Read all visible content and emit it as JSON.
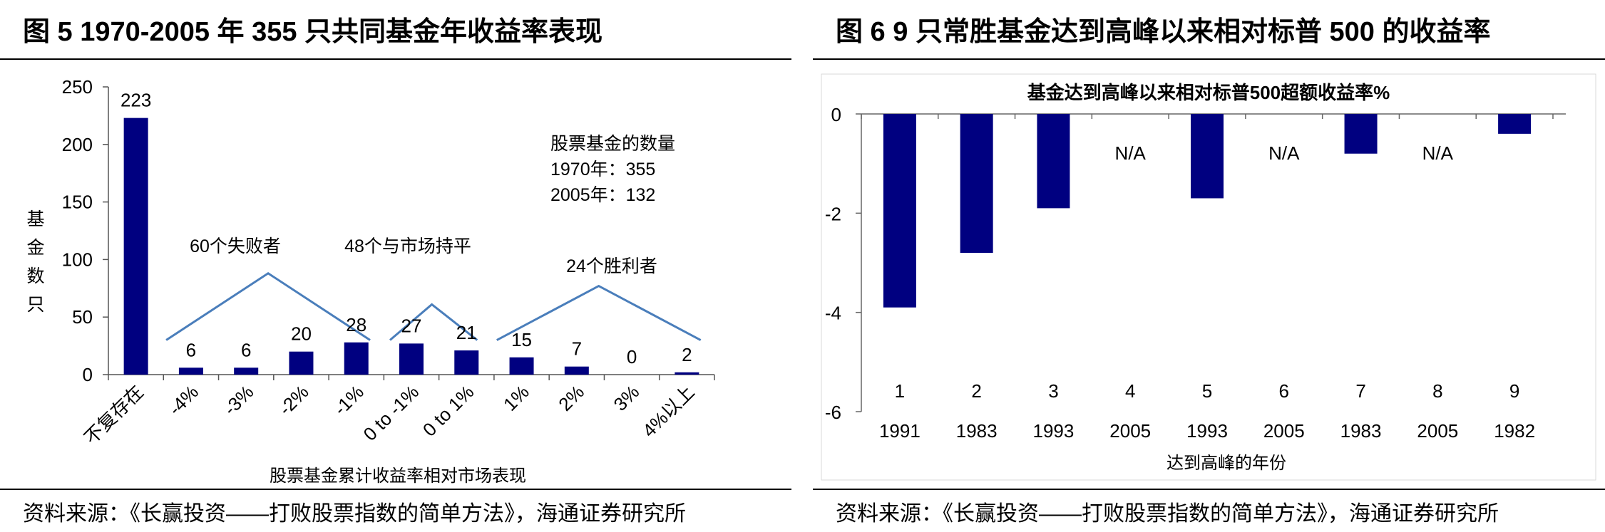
{
  "left_panel": {
    "figure_title": "图 5  1970-2005 年 355 只共同基金年收益率表现",
    "source": "资料来源：《长赢投资——打败股票指数的简单方法》，海通证券研究所"
  },
  "right_panel": {
    "figure_title": "图 6  9 只常胜基金达到高峰以来相对标普 500 的收益率",
    "source": "资料来源：《长赢投资——打败股票指数的简单方法》，海通证券研究所"
  },
  "chart_data": [
    {
      "type": "bar",
      "title": "",
      "xlabel": "股票基金累计收益率相对市场表现",
      "ylabel": "基金数只",
      "ylabel_chars": [
        "基",
        "金",
        "数",
        "只"
      ],
      "ylim": [
        0,
        250
      ],
      "yticks": [
        "0",
        "50",
        "100",
        "150",
        "200",
        "250"
      ],
      "categories": [
        "不复存在",
        "-4%",
        "-3%",
        "-2%",
        "-1%",
        "0 to -1%",
        "0 to 1%",
        "1%",
        "2%",
        "3%",
        "4%以上"
      ],
      "values": [
        223,
        6,
        6,
        20,
        28,
        27,
        21,
        15,
        7,
        0,
        2
      ],
      "data_labels": [
        "223",
        "6",
        "6",
        "20",
        "28",
        "27",
        "21",
        "15",
        "7",
        "0",
        "2"
      ],
      "bar_color": "#000080",
      "line_color": "#4a7ebb",
      "annotations": {
        "failures": "60个失败者",
        "flat": "48个与市场持平",
        "winners": "24个胜利者",
        "count_title": "股票基金的数量",
        "count_1970": "1970年：355",
        "count_2005": "2005年：132"
      }
    },
    {
      "type": "bar",
      "title": "基金达到高峰以来相对标普500超额收益率%",
      "xlabel": "达到高峰的年份",
      "ylabel": "",
      "ylim": [
        -6,
        0
      ],
      "yticks": [
        "0",
        "-2",
        "-4",
        "-6"
      ],
      "categories": [
        "1",
        "2",
        "3",
        "4",
        "5",
        "6",
        "7",
        "8",
        "9"
      ],
      "years": [
        "1991",
        "1983",
        "1993",
        "2005",
        "1993",
        "2005",
        "1983",
        "2005",
        "1982"
      ],
      "values": [
        -3.9,
        -2.8,
        -1.9,
        null,
        -1.7,
        null,
        -0.8,
        null,
        -0.4
      ],
      "na_label": "N/A",
      "bar_color": "#000080"
    }
  ]
}
